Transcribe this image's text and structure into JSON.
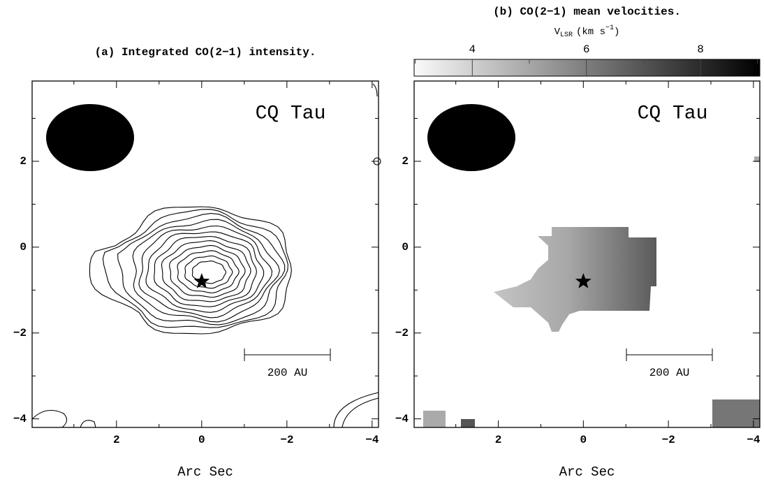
{
  "chart_data": [
    {
      "type": "contour",
      "title": "(a) Integrated CO(2−1) intensity.",
      "object_label": "CQ Tau",
      "scale_bar": "200 AU",
      "xlabel": "Arc Sec",
      "xlim": [
        3.98,
        -4.15
      ],
      "ylim": [
        -4.2,
        3.87
      ],
      "xticks": [
        2,
        0,
        {
          "value": -2,
          "label": "−2"
        },
        {
          "value": -4,
          "label": "−4"
        }
      ],
      "yticks": [
        {
          "value": -4,
          "label": "−4"
        },
        {
          "value": -2,
          "label": "−2"
        },
        0,
        2
      ],
      "minor_xticks": [
        3,
        1,
        -1,
        -3
      ],
      "minor_yticks": [
        -3,
        -1,
        1,
        3
      ],
      "source": {
        "x": 0,
        "y": -0.8
      }
    },
    {
      "type": "velocity_map",
      "title": "(b) CO(2−1) mean velocities.",
      "object_label": "CQ Tau",
      "scale_bar": "200 AU",
      "xlabel": "Arc Sec",
      "xlim": [
        3.98,
        -4.15
      ],
      "ylim": [
        -4.2,
        3.87
      ],
      "xticks": [
        2,
        0,
        {
          "value": -2,
          "label": "−2"
        },
        {
          "value": -4,
          "label": "−4"
        }
      ],
      "yticks": [
        {
          "value": -4,
          "label": "−4"
        },
        {
          "value": -2,
          "label": "−2"
        },
        0,
        2
      ],
      "minor_xticks": [
        3,
        1,
        -1,
        -3
      ],
      "minor_yticks": [
        -3,
        -1,
        1,
        3
      ],
      "source": {
        "x": 0,
        "y": -0.8
      },
      "colorbar": {
        "label_main": "V",
        "label_sub": "LSR",
        "label_unit": "(km s",
        "label_sup": "−1",
        "label_close": ")",
        "clim": [
          2.98,
          9.04
        ],
        "ticks": [
          4,
          6,
          8
        ],
        "minor_ticks": [
          3,
          5,
          7,
          9
        ]
      }
    }
  ]
}
